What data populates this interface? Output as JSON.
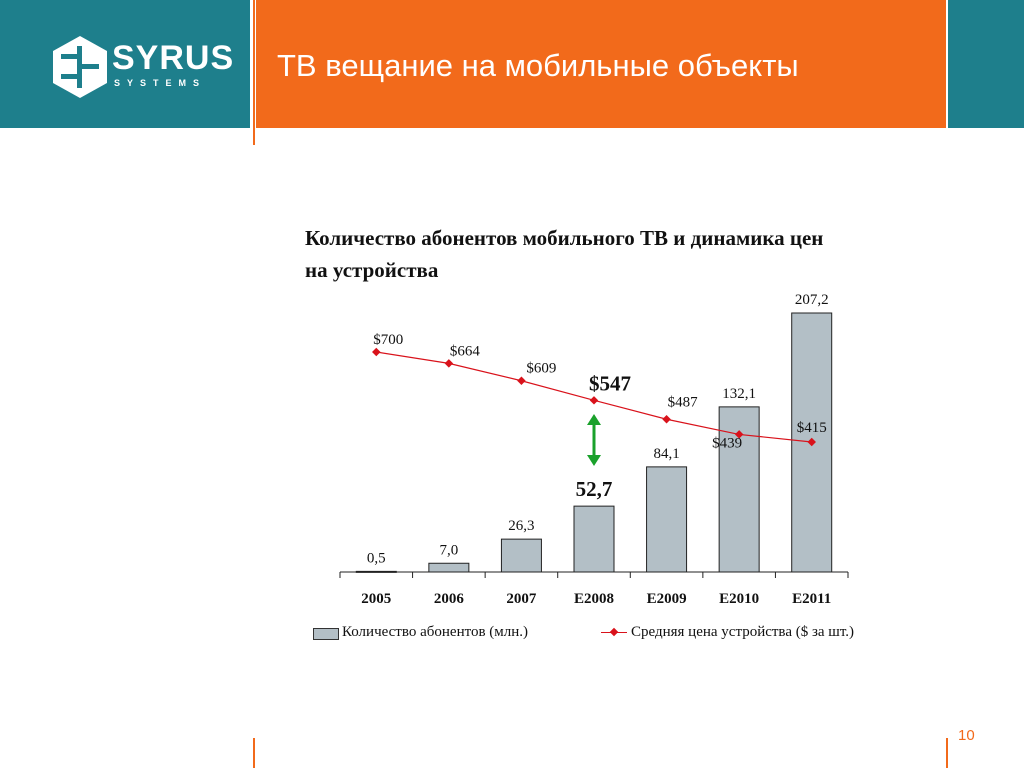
{
  "header": {
    "title": "ТВ вещание на мобильные объекты",
    "logo_name": "SYRUS",
    "logo_sub": "SYSTEMS"
  },
  "colors": {
    "teal": "#1e7f8c",
    "orange": "#f26a1b",
    "bar_fill": "#b3bfc6",
    "line": "#d9121b",
    "arrow": "#1aa12b"
  },
  "chart_data": {
    "type": "bar",
    "title": "Количество абонентов мобильного ТВ и динамика цен на устройства",
    "categories": [
      "2005",
      "2006",
      "2007",
      "E2008",
      "E2009",
      "E2010",
      "E2011"
    ],
    "series": [
      {
        "name": "Количество абонентов (млн.)",
        "type": "bar",
        "values": [
          0.5,
          7.0,
          26.3,
          52.7,
          84.1,
          132.1,
          207.2
        ],
        "labels": [
          "0,5",
          "7,0",
          "26,3",
          "52,7",
          "84,1",
          "132,1",
          "207,2"
        ],
        "highlight_index": 3
      },
      {
        "name": "Средняя цена устройства ($ за шт.)",
        "type": "line",
        "values": [
          700,
          664,
          609,
          547,
          487,
          439,
          415
        ],
        "labels": [
          "$700",
          "$664",
          "$609",
          "$547",
          "$487",
          "$439",
          "$415"
        ],
        "highlight_index": 3
      }
    ],
    "annotation": "double-headed arrow linking the E2008 price and subscriber values",
    "legend_position": "bottom",
    "grid": false
  },
  "page_number": "10"
}
